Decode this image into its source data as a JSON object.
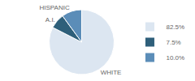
{
  "chart_data": {
    "type": "pie",
    "categories": [
      "WHITE",
      "A.I.",
      "HISPANIC"
    ],
    "values": [
      82.5,
      7.5,
      10.0
    ],
    "value_labels": [
      "82.5%",
      "7.5%",
      "10.0%"
    ],
    "colors": [
      "#dce6f1",
      "#2e5f7a",
      "#5b8db8"
    ],
    "legend": "right"
  }
}
